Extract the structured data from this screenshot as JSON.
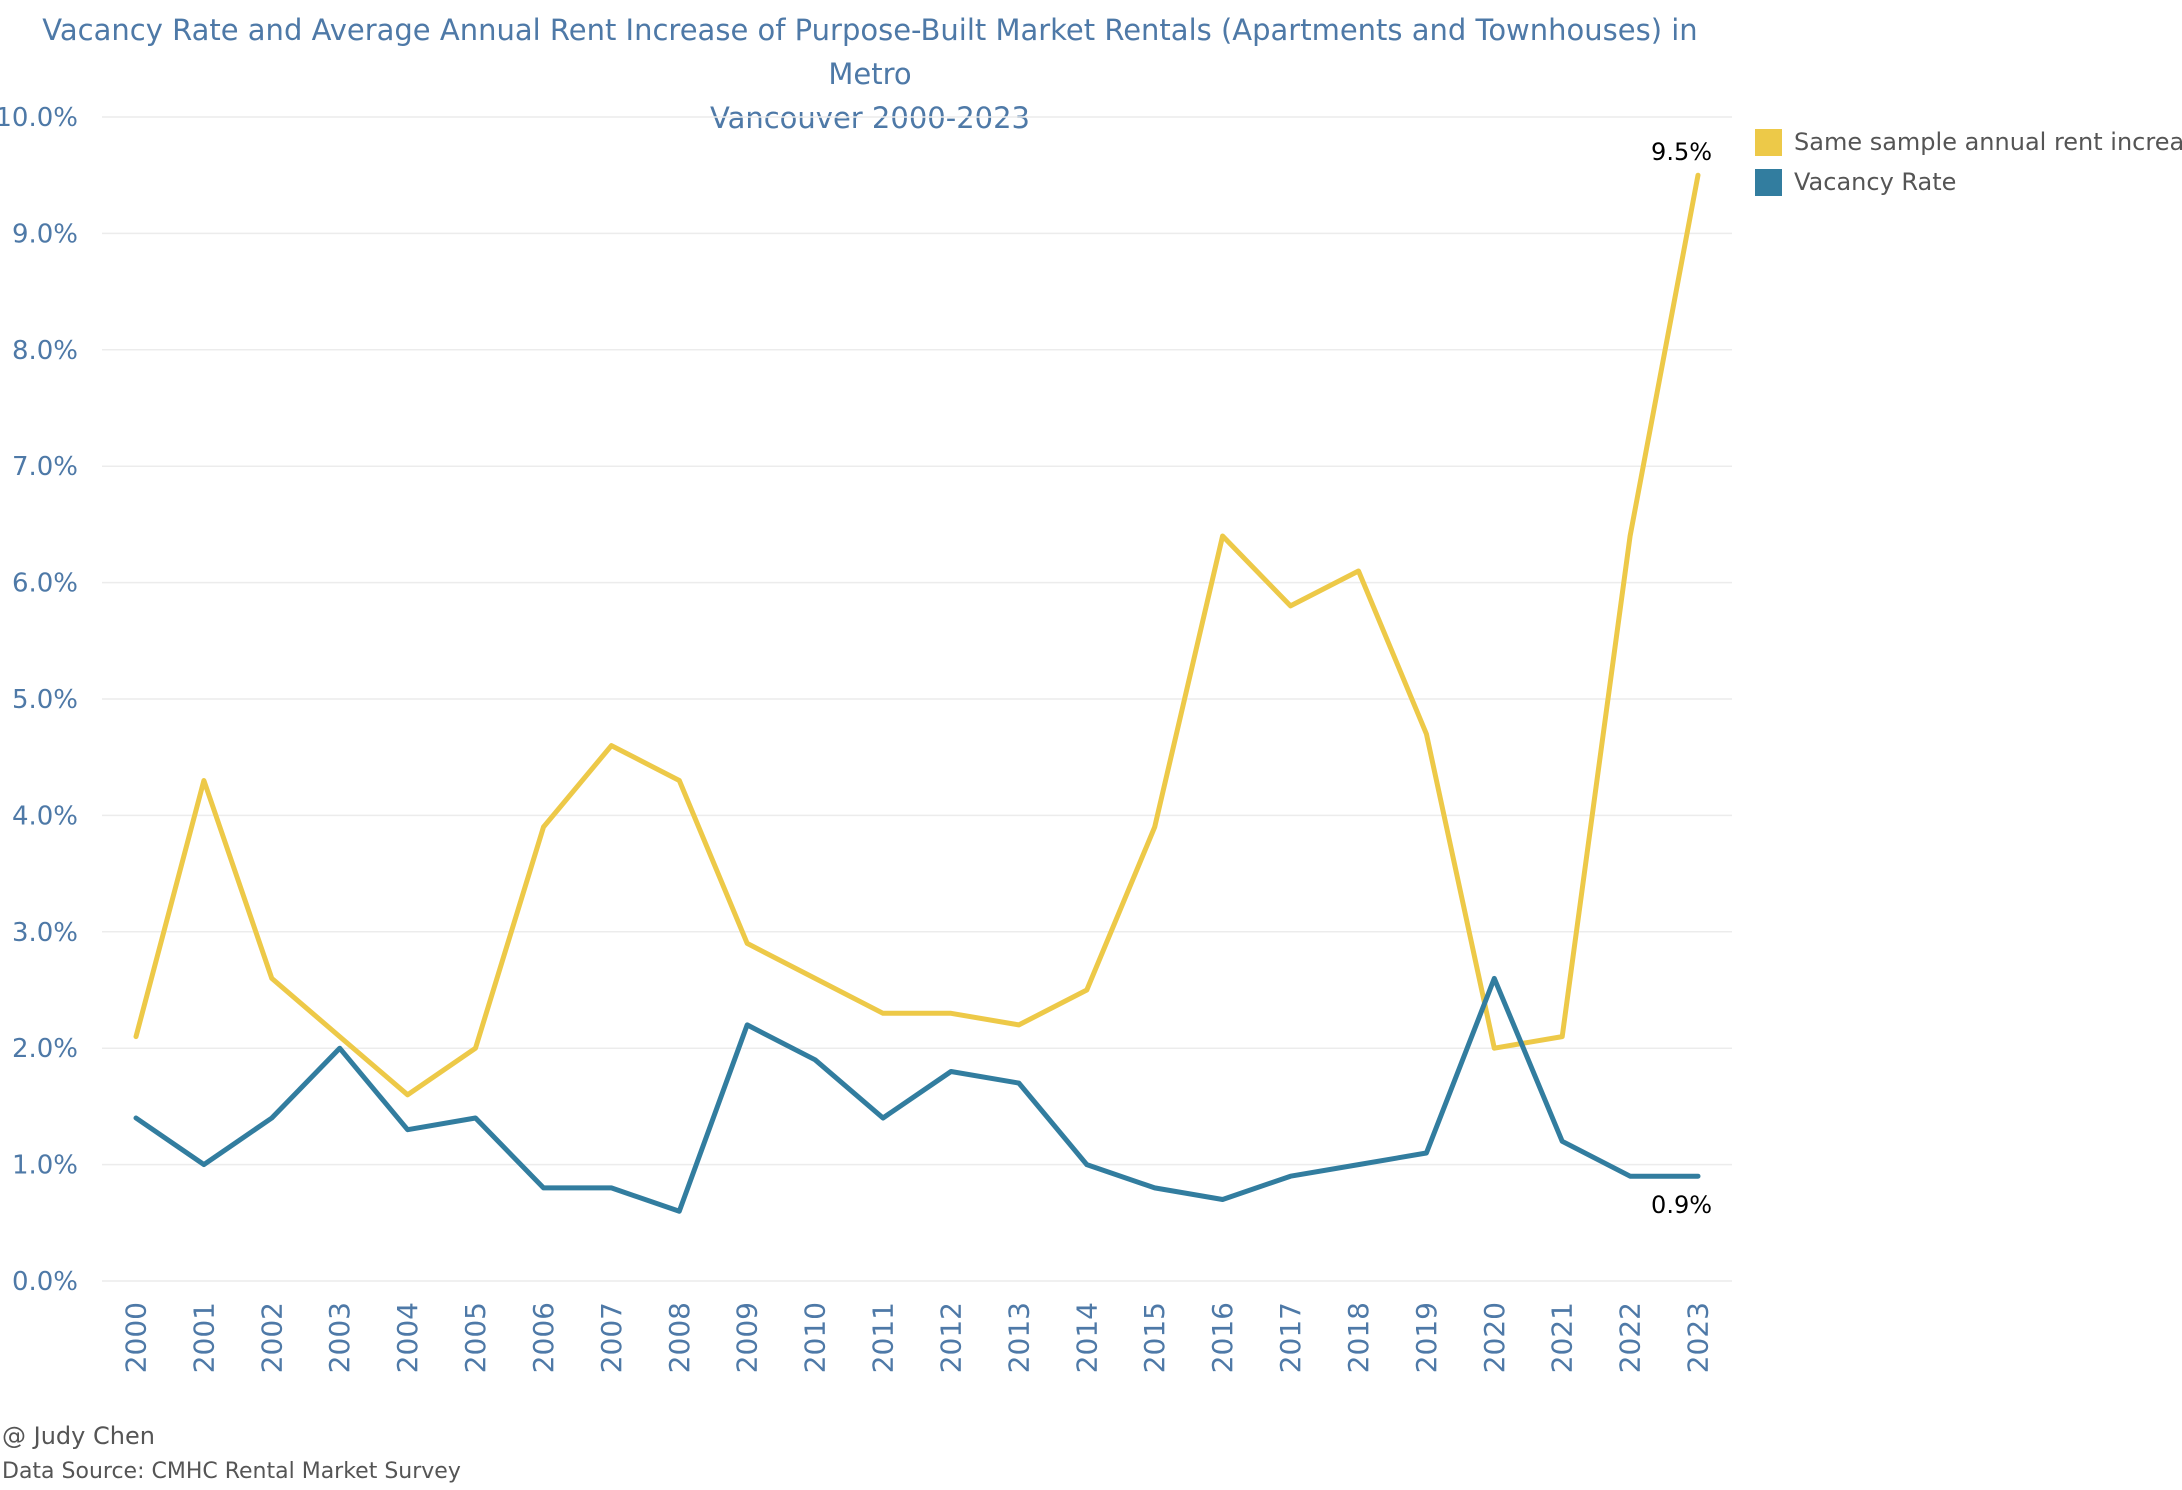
{
  "chart_data": {
    "type": "line",
    "title_line1": "Vacancy Rate and Average Annual Rent Increase of Purpose-Built Market Rentals (Apartments and Townhouses) in Metro",
    "title_line2": "Vancouver 2000-2023",
    "x": [
      "2000",
      "2001",
      "2002",
      "2003",
      "2004",
      "2005",
      "2006",
      "2007",
      "2008",
      "2009",
      "2010",
      "2011",
      "2012",
      "2013",
      "2014",
      "2015",
      "2016",
      "2017",
      "2018",
      "2019",
      "2020",
      "2021",
      "2022",
      "2023"
    ],
    "ylim": [
      0,
      10
    ],
    "yticks": [
      "0.0%",
      "1.0%",
      "2.0%",
      "3.0%",
      "4.0%",
      "5.0%",
      "6.0%",
      "7.0%",
      "8.0%",
      "9.0%",
      "10.0%"
    ],
    "grid": "horizontal",
    "legend_position": "top-right",
    "series": [
      {
        "name": "Same sample annual rent increase",
        "color": "#edc948",
        "values": [
          2.1,
          4.3,
          2.6,
          2.1,
          1.6,
          2.0,
          3.9,
          4.6,
          4.3,
          2.9,
          2.6,
          2.3,
          2.3,
          2.2,
          2.5,
          3.9,
          6.4,
          5.8,
          6.1,
          4.7,
          2.0,
          2.1,
          6.4,
          9.5
        ],
        "end_label": "9.5%"
      },
      {
        "name": "Vacancy Rate",
        "color": "#327d9f",
        "values": [
          1.4,
          1.0,
          1.4,
          2.0,
          1.3,
          1.4,
          0.8,
          0.8,
          0.6,
          2.2,
          1.9,
          1.4,
          1.8,
          1.7,
          1.0,
          0.8,
          0.7,
          0.9,
          1.0,
          1.1,
          2.6,
          1.2,
          0.9,
          0.9
        ],
        "end_label": "0.9%"
      }
    ]
  },
  "footer": {
    "author": "@ Judy Chen",
    "source": "Data Source: CMHC Rental Market Survey"
  }
}
